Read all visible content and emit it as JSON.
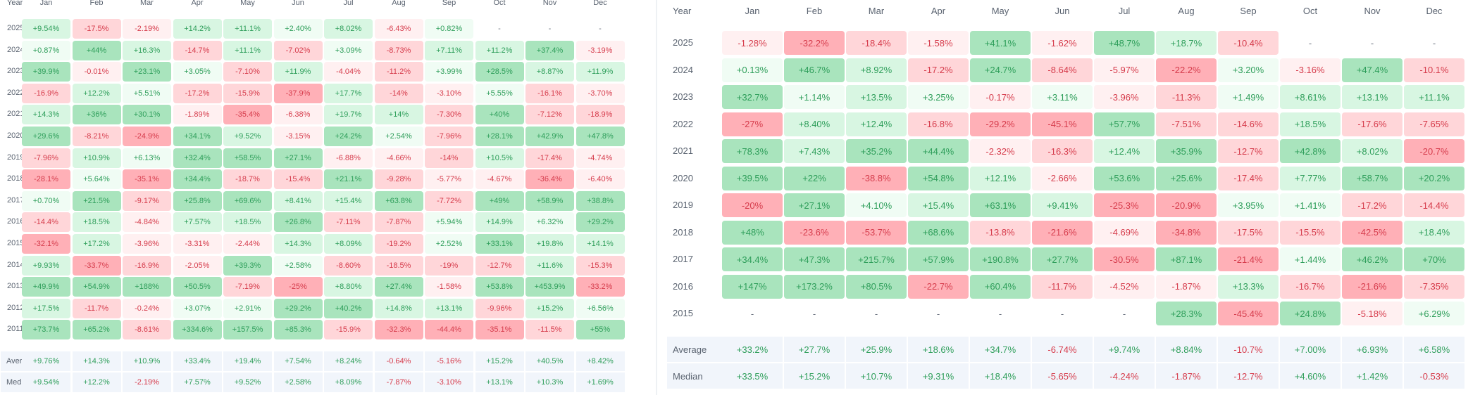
{
  "months": [
    "Jan",
    "Feb",
    "Mar",
    "Apr",
    "May",
    "Jun",
    "Jul",
    "Aug",
    "Sep",
    "Oct",
    "Nov",
    "Dec"
  ],
  "year_header": "Year",
  "summary_labels": [
    "Average",
    "Median"
  ],
  "colors": {
    "pos_text": "#2e9e5a",
    "neg_text": "#d63c4c",
    "neutral_text": "#6b7280",
    "pos_bg_1": "#f0fcf4",
    "pos_bg_2": "#d8f6e2",
    "pos_bg_3": "#a9e4bd",
    "neg_bg_1": "#fff0f1",
    "neg_bg_2": "#ffd6d9",
    "neg_bg_3": "#ffb0b7",
    "summary_bg": "#f1f5fb"
  },
  "left_table": {
    "rows": [
      {
        "year": "2025",
        "values": [
          "+9.54%",
          "-17.5%",
          "-2.19%",
          "+14.2%",
          "+11.1%",
          "+2.40%",
          "+8.02%",
          "-6.43%",
          "+0.82%",
          "-",
          "-",
          "-"
        ]
      },
      {
        "year": "2024",
        "values": [
          "+0.87%",
          "+44%",
          "+16.3%",
          "-14.7%",
          "+11.1%",
          "-7.02%",
          "+3.09%",
          "-8.73%",
          "+7.11%",
          "+11.2%",
          "+37.4%",
          "-3.19%"
        ]
      },
      {
        "year": "2023",
        "values": [
          "+39.9%",
          "-0.01%",
          "+23.1%",
          "+3.05%",
          "-7.10%",
          "+11.9%",
          "-4.04%",
          "-11.2%",
          "+3.99%",
          "+28.5%",
          "+8.87%",
          "+11.9%"
        ]
      },
      {
        "year": "2022",
        "values": [
          "-16.9%",
          "+12.2%",
          "+5.51%",
          "-17.2%",
          "-15.9%",
          "-37.9%",
          "+17.7%",
          "-14%",
          "-3.10%",
          "+5.55%",
          "-16.1%",
          "-3.70%"
        ]
      },
      {
        "year": "2021",
        "values": [
          "+14.3%",
          "+36%",
          "+30.1%",
          "-1.89%",
          "-35.4%",
          "-6.38%",
          "+19.7%",
          "+14%",
          "-7.30%",
          "+40%",
          "-7.12%",
          "-18.9%"
        ]
      },
      {
        "year": "2020",
        "values": [
          "+29.6%",
          "-8.21%",
          "-24.9%",
          "+34.1%",
          "+9.52%",
          "-3.15%",
          "+24.2%",
          "+2.54%",
          "-7.96%",
          "+28.1%",
          "+42.9%",
          "+47.8%"
        ]
      },
      {
        "year": "2019",
        "values": [
          "-7.96%",
          "+10.9%",
          "+6.13%",
          "+32.4%",
          "+58.5%",
          "+27.1%",
          "-6.88%",
          "-4.66%",
          "-14%",
          "+10.5%",
          "-17.4%",
          "-4.74%"
        ]
      },
      {
        "year": "2018",
        "values": [
          "-28.1%",
          "+5.64%",
          "-35.1%",
          "+34.4%",
          "-18.7%",
          "-15.4%",
          "+21.1%",
          "-9.28%",
          "-5.77%",
          "-4.67%",
          "-36.4%",
          "-6.40%"
        ]
      },
      {
        "year": "2017",
        "values": [
          "+0.70%",
          "+21.5%",
          "-9.17%",
          "+25.8%",
          "+69.6%",
          "+8.41%",
          "+15.4%",
          "+63.8%",
          "-7.72%",
          "+49%",
          "+58.9%",
          "+38.8%"
        ]
      },
      {
        "year": "2016",
        "values": [
          "-14.4%",
          "+18.5%",
          "-4.84%",
          "+7.57%",
          "+18.5%",
          "+26.8%",
          "-7.11%",
          "-7.87%",
          "+5.94%",
          "+14.9%",
          "+6.32%",
          "+29.2%"
        ]
      },
      {
        "year": "2015",
        "values": [
          "-32.1%",
          "+17.2%",
          "-3.96%",
          "-3.31%",
          "-2.44%",
          "+14.3%",
          "+8.09%",
          "-19.2%",
          "+2.52%",
          "+33.1%",
          "+19.8%",
          "+14.1%"
        ]
      },
      {
        "year": "2014",
        "values": [
          "+9.93%",
          "-33.7%",
          "-16.9%",
          "-2.05%",
          "+39.3%",
          "+2.58%",
          "-8.60%",
          "-18.5%",
          "-19%",
          "-12.7%",
          "+11.6%",
          "-15.3%"
        ]
      },
      {
        "year": "2013",
        "values": [
          "+49.9%",
          "+54.9%",
          "+188%",
          "+50.5%",
          "-7.19%",
          "-25%",
          "+8.80%",
          "+27.4%",
          "-1.58%",
          "+53.8%",
          "+453.9%",
          "-33.2%"
        ]
      },
      {
        "year": "2012",
        "values": [
          "+17.5%",
          "-11.7%",
          "-0.24%",
          "+3.07%",
          "+2.91%",
          "+29.2%",
          "+40.2%",
          "+14.8%",
          "+13.1%",
          "-9.96%",
          "+15.2%",
          "+6.56%"
        ]
      },
      {
        "year": "2011",
        "values": [
          "+73.7%",
          "+65.2%",
          "-8.61%",
          "+334.6%",
          "+157.5%",
          "+85.3%",
          "-15.9%",
          "-32.3%",
          "-44.4%",
          "-35.1%",
          "-11.5%",
          "+55%"
        ]
      }
    ],
    "average": [
      "+9.76%",
      "+14.3%",
      "+10.9%",
      "+33.4%",
      "+19.4%",
      "+7.54%",
      "+8.24%",
      "-0.64%",
      "-5.16%",
      "+15.2%",
      "+40.5%",
      "+8.42%"
    ],
    "median": [
      "+9.54%",
      "+12.2%",
      "-2.19%",
      "+7.57%",
      "+9.52%",
      "+2.58%",
      "+8.09%",
      "-7.87%",
      "-3.10%",
      "+13.1%",
      "+10.3%",
      "+1.69%"
    ]
  },
  "right_table": {
    "rows": [
      {
        "year": "2025",
        "values": [
          "-1.28%",
          "-32.2%",
          "-18.4%",
          "-1.58%",
          "+41.1%",
          "-1.62%",
          "+48.7%",
          "+18.7%",
          "-10.4%",
          "-",
          "-",
          "-"
        ]
      },
      {
        "year": "2024",
        "values": [
          "+0.13%",
          "+46.7%",
          "+8.92%",
          "-17.2%",
          "+24.7%",
          "-8.64%",
          "-5.97%",
          "-22.2%",
          "+3.20%",
          "-3.16%",
          "+47.4%",
          "-10.1%"
        ]
      },
      {
        "year": "2023",
        "values": [
          "+32.7%",
          "+1.14%",
          "+13.5%",
          "+3.25%",
          "-0.17%",
          "+3.11%",
          "-3.96%",
          "-11.3%",
          "+1.49%",
          "+8.61%",
          "+13.1%",
          "+11.1%"
        ]
      },
      {
        "year": "2022",
        "values": [
          "-27%",
          "+8.40%",
          "+12.4%",
          "-16.8%",
          "-29.2%",
          "-45.1%",
          "+57.7%",
          "-7.51%",
          "-14.6%",
          "+18.5%",
          "-17.6%",
          "-7.65%"
        ]
      },
      {
        "year": "2021",
        "values": [
          "+78.3%",
          "+7.43%",
          "+35.2%",
          "+44.4%",
          "-2.32%",
          "-16.3%",
          "+12.4%",
          "+35.9%",
          "-12.7%",
          "+42.8%",
          "+8.02%",
          "-20.7%"
        ]
      },
      {
        "year": "2020",
        "values": [
          "+39.5%",
          "+22%",
          "-38.8%",
          "+54.8%",
          "+12.1%",
          "-2.66%",
          "+53.6%",
          "+25.6%",
          "-17.4%",
          "+7.77%",
          "+58.7%",
          "+20.2%"
        ]
      },
      {
        "year": "2019",
        "values": [
          "-20%",
          "+27.1%",
          "+4.10%",
          "+15.4%",
          "+63.1%",
          "+9.41%",
          "-25.3%",
          "-20.9%",
          "+3.95%",
          "+1.41%",
          "-17.2%",
          "-14.4%"
        ]
      },
      {
        "year": "2018",
        "values": [
          "+48%",
          "-23.6%",
          "-53.7%",
          "+68.6%",
          "-13.8%",
          "-21.6%",
          "-4.69%",
          "-34.8%",
          "-17.5%",
          "-15.5%",
          "-42.5%",
          "+18.4%"
        ]
      },
      {
        "year": "2017",
        "values": [
          "+34.4%",
          "+47.3%",
          "+215.7%",
          "+57.9%",
          "+190.8%",
          "+27.7%",
          "-30.5%",
          "+87.1%",
          "-21.4%",
          "+1.44%",
          "+46.2%",
          "+70%"
        ]
      },
      {
        "year": "2016",
        "values": [
          "+147%",
          "+173.2%",
          "+80.5%",
          "-22.7%",
          "+60.4%",
          "-11.7%",
          "-4.52%",
          "-1.87%",
          "+13.3%",
          "-16.7%",
          "-21.6%",
          "-7.35%"
        ]
      },
      {
        "year": "2015",
        "values": [
          "-",
          "-",
          "-",
          "-",
          "-",
          "-",
          "-",
          "+28.3%",
          "-45.4%",
          "+24.8%",
          "-5.18%",
          "+6.29%"
        ]
      }
    ],
    "average": [
      "+33.2%",
      "+27.7%",
      "+25.9%",
      "+18.6%",
      "+34.7%",
      "-6.74%",
      "+9.74%",
      "+8.84%",
      "-10.7%",
      "+7.00%",
      "+6.93%",
      "+6.58%"
    ],
    "median": [
      "+33.5%",
      "+15.2%",
      "+10.7%",
      "+9.31%",
      "+18.4%",
      "-5.65%",
      "-4.24%",
      "-1.87%",
      "-12.7%",
      "+4.60%",
      "+1.42%",
      "-0.53%"
    ]
  }
}
